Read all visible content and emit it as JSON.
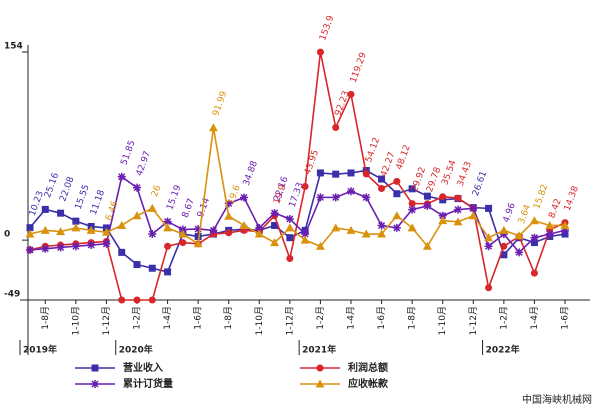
{
  "chart_data": {
    "type": "line",
    "categories": [
      null,
      "1-8月",
      null,
      "1-10月",
      null,
      "1-12月",
      null,
      "1-2月",
      null,
      "1-4月",
      null,
      "1-6月",
      null,
      "1-8月",
      null,
      "1-10月",
      null,
      "1-12月",
      null,
      "1-2月",
      null,
      "1-4月",
      null,
      "1-6月",
      null,
      "1-8月",
      null,
      "1-10月",
      null,
      "1-12月",
      null,
      "1-2月",
      null,
      "1-4月",
      null,
      "1-6月"
    ],
    "years": [
      "2019年",
      "2020年",
      "2021年",
      "2022年"
    ],
    "ylim": [
      -49,
      154
    ],
    "yticks": [
      -49,
      0,
      154
    ],
    "series": [
      {
        "name": "营业收入",
        "color": "#3a2fa8",
        "marker": "square",
        "values": [
          10.23,
          25.16,
          22.08,
          15.55,
          11.18,
          10,
          -10,
          -20,
          -23,
          -26,
          5,
          3,
          5,
          8,
          9,
          8,
          12,
          2,
          8,
          55,
          54,
          55,
          57,
          50,
          38,
          42,
          36,
          33,
          34,
          26.61,
          26,
          -12,
          2,
          -2,
          3,
          5
        ],
        "value_labels": [
          "10.23",
          "25.16",
          "22.08",
          "15.55",
          "11.18",
          null,
          null,
          null,
          null,
          null,
          null,
          null,
          null,
          null,
          null,
          null,
          null,
          null,
          null,
          null,
          null,
          null,
          null,
          null,
          null,
          null,
          null,
          null,
          null,
          "26.61",
          null,
          null,
          null,
          null,
          null,
          null
        ]
      },
      {
        "name": "利润总额",
        "color": "#d8262a",
        "marker": "circle",
        "values": [
          -8,
          -5,
          -4,
          -3,
          -2,
          -1,
          -49,
          -49,
          -49,
          -5,
          -2,
          -3,
          5,
          6,
          8,
          7,
          19.9,
          -15,
          43.95,
          153.9,
          92.23,
          119.29,
          54.12,
          42.27,
          48.12,
          29.92,
          29.78,
          35.54,
          34.43,
          26,
          -39,
          -5,
          3,
          -27,
          8.42,
          14.38
        ],
        "value_labels": [
          null,
          null,
          null,
          null,
          null,
          null,
          null,
          null,
          null,
          null,
          null,
          null,
          null,
          null,
          null,
          null,
          "19.9",
          null,
          "43.95",
          "153.9",
          "92.23",
          "119.29",
          "54.12",
          "42.27",
          "48.12",
          "29.92",
          "29.78",
          "35.54",
          "34.43",
          null,
          null,
          null,
          null,
          null,
          "8.42",
          "14.38"
        ]
      },
      {
        "name": "累计订货量",
        "color": "#6a1fb0",
        "marker": "star",
        "values": [
          -8,
          -7,
          -6,
          -5,
          -4,
          -3,
          51.85,
          42.97,
          5,
          15.19,
          8.67,
          9.14,
          8,
          30,
          34.88,
          10,
          22.16,
          17.33,
          5,
          35,
          35,
          40,
          35,
          12,
          10,
          25,
          28,
          20,
          25,
          26,
          -5,
          4.96,
          -10,
          2,
          5,
          8
        ],
        "value_labels": [
          null,
          null,
          null,
          null,
          null,
          null,
          "51.85",
          "42.97",
          null,
          "15.19",
          "8.67",
          "9.14",
          null,
          null,
          "34.88",
          null,
          "22.16",
          "17.33",
          null,
          null,
          null,
          null,
          null,
          null,
          null,
          null,
          null,
          null,
          null,
          null,
          null,
          "4.96",
          null,
          null,
          null,
          null
        ]
      },
      {
        "name": "应收帐款",
        "color": "#d9920c",
        "marker": "triangle",
        "values": [
          5,
          8,
          7,
          10,
          8,
          6.46,
          12,
          20,
          26,
          10,
          5,
          -3,
          91.99,
          19.6,
          12,
          5,
          -2,
          10,
          0,
          -5,
          10,
          8,
          5,
          5,
          20,
          10,
          -5,
          16,
          15,
          20,
          2,
          8,
          3.64,
          15.82,
          12,
          12
        ],
        "value_labels": [
          null,
          null,
          null,
          null,
          null,
          "6.46",
          null,
          null,
          "26",
          null,
          null,
          null,
          "91.99",
          "19.6",
          null,
          null,
          null,
          null,
          null,
          null,
          null,
          null,
          null,
          null,
          null,
          null,
          null,
          null,
          null,
          null,
          null,
          null,
          "3.64",
          "15.82",
          null,
          null
        ]
      }
    ],
    "source": "中国海峡机械网"
  }
}
